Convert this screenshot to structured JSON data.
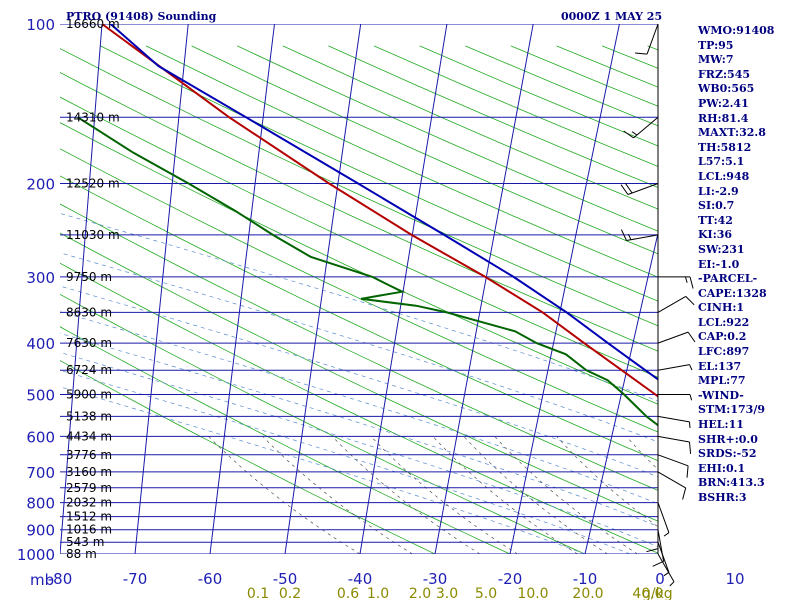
{
  "header": {
    "station": "PTRO (91408) Sounding",
    "time": "0000Z  1 MAY 25"
  },
  "axis": {
    "pressure_unit": "mb",
    "mixing_unit": "g/kg"
  },
  "parameters": [
    "WMO:91408",
    "TP:95",
    "MW:7",
    "FRZ:545",
    "WB0:565",
    "PW:2.41",
    "RH:81.4",
    "MAXT:32.8",
    "TH:5812",
    "L57:5.1",
    "LCL:948",
    "LI:-2.9",
    "SI:0.7",
    "TT:42",
    "KI:36",
    "SW:231",
    "EI:-1.0",
    "-PARCEL-",
    "CAPE:1328",
    "CINH:1",
    "LCL:922",
    "CAP:0.2",
    "LFC:897",
    "EL:137",
    "MPL:77",
    "-WIND-",
    "STM:173/9",
    "HEL:11",
    "SHR+:0.0",
    "SRDS:-52",
    "EHI:0.1",
    "BRN:413.3",
    "BSHR:3"
  ],
  "chart_data": {
    "type": "line",
    "title": "PTRO (91408) Sounding",
    "subtitle": "0000Z  1 MAY 25",
    "xlabel": "",
    "ylabel": "mb",
    "x_scale": "skewed temperature (°C)",
    "y_scale": "log pressure (mb)",
    "xlim": [
      -80,
      40
    ],
    "ylim": [
      1000,
      100
    ],
    "grid": true,
    "temperature_ticks": [
      "-80",
      "-70",
      "-60",
      "-50",
      "-40",
      "-30",
      "-20",
      "-10",
      "0",
      "10",
      "20",
      "30",
      "40"
    ],
    "pressure_ticks": [
      "100",
      "200",
      "300",
      "400",
      "500",
      "600",
      "700",
      "800",
      "900",
      "1000"
    ],
    "height_labels": [
      {
        "p": 100,
        "label": "16660 m"
      },
      {
        "p": 150,
        "label": "14310 m"
      },
      {
        "p": 200,
        "label": "12520 m"
      },
      {
        "p": 250,
        "label": "11030 m"
      },
      {
        "p": 300,
        "label": "9750 m"
      },
      {
        "p": 350,
        "label": "8630 m"
      },
      {
        "p": 400,
        "label": "7630 m"
      },
      {
        "p": 450,
        "label": "6724 m"
      },
      {
        "p": 500,
        "label": "5900 m"
      },
      {
        "p": 550,
        "label": "5138 m"
      },
      {
        "p": 600,
        "label": "4434 m"
      },
      {
        "p": 650,
        "label": "3776 m"
      },
      {
        "p": 700,
        "label": "3160 m"
      },
      {
        "p": 750,
        "label": "2579 m"
      },
      {
        "p": 800,
        "label": "2032 m"
      },
      {
        "p": 850,
        "label": "1512 m"
      },
      {
        "p": 900,
        "label": "1016 m"
      },
      {
        "p": 950,
        "label": "543 m"
      },
      {
        "p": 1000,
        "label": "88 m"
      }
    ],
    "mixing_ratio_labels": [
      "0.1",
      "0.2",
      "0.6",
      "1.0",
      "2.0",
      "3.0",
      "5.0",
      "10.0",
      "20.0",
      "40.0"
    ],
    "series": [
      {
        "name": "",
        "color": "#b40000",
        "points": [
          [
            1000,
            29
          ],
          [
            950,
            25
          ],
          [
            900,
            21.5
          ],
          [
            850,
            19
          ],
          [
            800,
            16
          ],
          [
            750,
            13
          ],
          [
            700,
            10
          ],
          [
            650,
            6.5
          ],
          [
            600,
            2.5
          ],
          [
            550,
            -1
          ],
          [
            500,
            -5.5
          ],
          [
            450,
            -10.5
          ],
          [
            400,
            -16
          ],
          [
            350,
            -22
          ],
          [
            300,
            -30
          ],
          [
            250,
            -40
          ],
          [
            200,
            -51
          ],
          [
            150,
            -64
          ],
          [
            100,
            -80
          ]
        ]
      },
      {
        "name": "",
        "color": "#006400",
        "points": [
          [
            1000,
            24
          ],
          [
            950,
            19
          ],
          [
            900,
            16
          ],
          [
            850,
            13
          ],
          [
            800,
            11
          ],
          [
            750,
            8
          ],
          [
            700,
            4
          ],
          [
            650,
            1
          ],
          [
            600,
            -2
          ],
          [
            550,
            -6
          ],
          [
            500,
            -9.5
          ],
          [
            470,
            -12
          ],
          [
            450,
            -15
          ],
          [
            420,
            -18
          ],
          [
            400,
            -22
          ],
          [
            380,
            -25
          ],
          [
            350,
            -34
          ],
          [
            340,
            -38
          ],
          [
            330,
            -45
          ],
          [
            320,
            -40
          ],
          [
            310,
            -42
          ],
          [
            300,
            -44
          ],
          [
            275,
            -52
          ],
          [
            250,
            -57
          ],
          [
            225,
            -62
          ],
          [
            200,
            -68
          ],
          [
            175,
            -75
          ],
          [
            150,
            -82
          ]
        ]
      },
      {
        "name": "",
        "color": "#0000b4",
        "points": [
          [
            1000,
            29
          ],
          [
            950,
            24.5
          ],
          [
            900,
            21
          ],
          [
            850,
            18.5
          ],
          [
            800,
            16.5
          ],
          [
            750,
            14
          ],
          [
            700,
            11.5
          ],
          [
            650,
            8.5
          ],
          [
            600,
            5
          ],
          [
            550,
            1.5
          ],
          [
            500,
            -2.5
          ],
          [
            450,
            -7.5
          ],
          [
            400,
            -13
          ],
          [
            350,
            -19
          ],
          [
            300,
            -26.5
          ],
          [
            250,
            -36
          ],
          [
            200,
            -47.5
          ],
          [
            150,
            -62
          ],
          [
            120,
            -73
          ],
          [
            100,
            -79
          ]
        ]
      }
    ],
    "wind_barbs": [
      {
        "p": 1000,
        "dir": 150,
        "spd": 5
      },
      {
        "p": 950,
        "dir": 160,
        "spd": 5
      },
      {
        "p": 900,
        "dir": 170,
        "spd": 10
      },
      {
        "p": 850,
        "dir": 180,
        "spd": 10
      },
      {
        "p": 800,
        "dir": 160,
        "spd": 5
      },
      {
        "p": 700,
        "dir": 120,
        "spd": 10
      },
      {
        "p": 650,
        "dir": 110,
        "spd": 10
      },
      {
        "p": 600,
        "dir": 100,
        "spd": 10
      },
      {
        "p": 550,
        "dir": 100,
        "spd": 5
      },
      {
        "p": 500,
        "dir": 90,
        "spd": 5
      },
      {
        "p": 450,
        "dir": 80,
        "spd": 5
      },
      {
        "p": 400,
        "dir": 70,
        "spd": 10
      },
      {
        "p": 350,
        "dir": 60,
        "spd": 10
      },
      {
        "p": 300,
        "dir": 90,
        "spd": 15
      },
      {
        "p": 250,
        "dir": 260,
        "spd": 15
      },
      {
        "p": 200,
        "dir": 250,
        "spd": 20
      },
      {
        "p": 150,
        "dir": 230,
        "spd": 15
      },
      {
        "p": 100,
        "dir": 200,
        "spd": 10
      }
    ]
  }
}
